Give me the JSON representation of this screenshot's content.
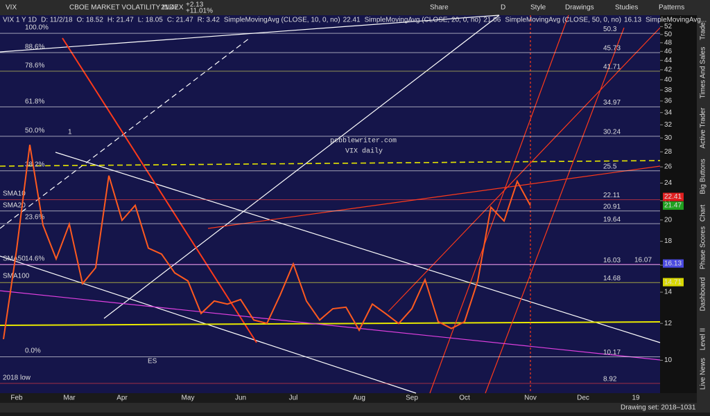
{
  "toolbar": {
    "symbol": "VIX",
    "description": "CBOE MARKET VOLATILITY INDEX",
    "last": "21.47",
    "change": "+2.13",
    "change_pct": "+11.01%",
    "buttons": [
      "Share",
      "D",
      "Style",
      "Drawings",
      "Studies",
      "Patterns"
    ]
  },
  "header": {
    "items": [
      "VIX 1 Y 1D",
      "D: 11/2/18",
      "O: 18.52",
      "H: 21.47",
      "L: 18.05",
      "C: 21.47",
      "R: 3.42"
    ],
    "studies": [
      {
        "name": "SimpleMovingAvg (CLOSE, 10, 0, no)",
        "value": "22.41",
        "color": "#ff4040"
      },
      {
        "name": "SimpleMovingAvg (CLOSE, 20, 0, no)",
        "value": "21.06",
        "color": "#ffffff"
      },
      {
        "name": "SimpleMovingAvg (CLOSE, 50, 0, no)",
        "value": "16.13",
        "color": "#8080ff"
      },
      {
        "name": "SimpleMovingAvg...",
        "value": "",
        "color": "#ffff40"
      }
    ]
  },
  "sidebar": [
    "Trade",
    "Times And Sales",
    "Active Trader",
    "Big Buttons",
    "Chart",
    "Phase Scores",
    "Dashboard",
    "Level II",
    "Live News"
  ],
  "footer": {
    "drawing_set": "Drawing set: 2018–1031"
  },
  "chart_data": {
    "type": "line",
    "annotations": [
      "pebblewriter.com",
      "VIX daily",
      "1",
      "ES",
      "2018 low"
    ],
    "fib_labels": [
      "100.0%",
      "88.6%",
      "78.6%",
      "61.8%",
      "50.0%",
      "38.2%",
      "23.6%",
      "14.6%",
      "0.0%"
    ],
    "sma_labels": [
      "SMA10",
      "SMA20",
      "SMA50",
      "SMA100"
    ],
    "categories": [
      null,
      "Feb",
      null,
      null,
      null,
      "Mar",
      null,
      null,
      null,
      "Apr",
      null,
      null,
      null,
      null,
      "May",
      null,
      null,
      null,
      "Jun",
      null,
      null,
      null,
      "Jul",
      null,
      null,
      null,
      null,
      "Aug",
      null,
      null,
      null,
      "Sep",
      null,
      null,
      null,
      "Oct",
      null,
      null,
      null,
      null,
      "Nov",
      null,
      null,
      null,
      "Dec",
      null,
      null,
      null,
      "19",
      null
    ],
    "series": [
      {
        "name": "VIX",
        "color": "#ff5a1f",
        "values": [
          11.1,
          17.3,
          29,
          19.5,
          16.5,
          19.6,
          14.6,
          15.8,
          24.9,
          19.97,
          21.5,
          17.4,
          16.9,
          15.4,
          14.8,
          12.6,
          13.4,
          13.2,
          13.5,
          12.2,
          12,
          13.8,
          16.1,
          13.4,
          12.2,
          12.9,
          13,
          11.6,
          13.2,
          12.6,
          11.99,
          12.9,
          14.9,
          12.1,
          11.7,
          12.1,
          14.8,
          21.3,
          19.9,
          24.2,
          21.47,
          null,
          null,
          null,
          null,
          null,
          null,
          null,
          null,
          null
        ]
      }
    ],
    "ylim": [
      8.5,
      55
    ],
    "log_y": true,
    "yticks": [
      10,
      12,
      14,
      16,
      18,
      20,
      22,
      24,
      26,
      28,
      30,
      32,
      34,
      36,
      38,
      40,
      42,
      44,
      46,
      48,
      50,
      52
    ],
    "levels": [
      {
        "value": 50.3,
        "color": "#ffffff"
      },
      {
        "value": 45.73,
        "color": "#ffffff"
      },
      {
        "value": 41.71,
        "color": "#e8e85a"
      },
      {
        "value": 34.97,
        "color": "#ffffff"
      },
      {
        "value": 30.24,
        "color": "#ffffff"
      },
      {
        "value": 25.5,
        "color": "#ffffff"
      },
      {
        "value": 22.11,
        "color": "#ff4040"
      },
      {
        "value": 20.91,
        "color": "#ffffff"
      },
      {
        "value": 19.64,
        "color": "#ffffff"
      },
      {
        "value": 16.03,
        "color": "#ffffff"
      },
      {
        "value": 16.07,
        "color": "#e040e0"
      },
      {
        "value": 14.68,
        "color": "#ffff40"
      },
      {
        "value": 10.17,
        "color": "#ffffff"
      },
      {
        "value": 8.92,
        "color": "#ff4040"
      }
    ],
    "price_tags": [
      {
        "value": 22.41,
        "color": "#e02020"
      },
      {
        "value": 21.47,
        "color": "#20a020"
      },
      {
        "value": 16.13,
        "color": "#4a4ae0"
      },
      {
        "value": 14.71,
        "color": "#d8d800"
      }
    ]
  }
}
